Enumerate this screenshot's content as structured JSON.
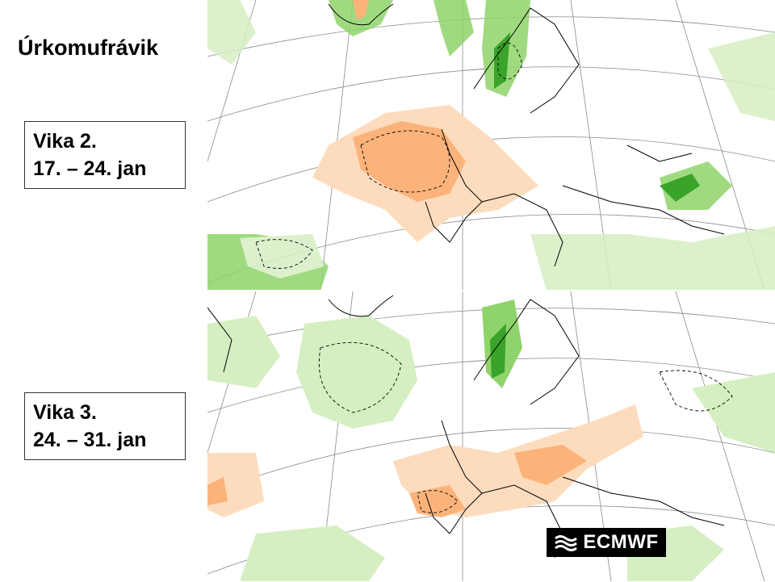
{
  "title": "Úrkomufrávik",
  "weeks": [
    {
      "label": "Vika 2.",
      "dates": "17. – 24. jan"
    },
    {
      "label": "Vika 3.",
      "dates": "24. – 31. jan"
    }
  ],
  "logo": {
    "text": "ECMWF"
  },
  "colors": {
    "dry_anomaly": "#fbb37a",
    "dry_anomaly_light": "#fddcbe",
    "wet_anomaly": "#8fd46a",
    "wet_anomaly_light": "#d6efc2",
    "wet_anomaly_strong": "#3aa329",
    "coastline": "#000000",
    "graticule": "#8a8a8a"
  }
}
